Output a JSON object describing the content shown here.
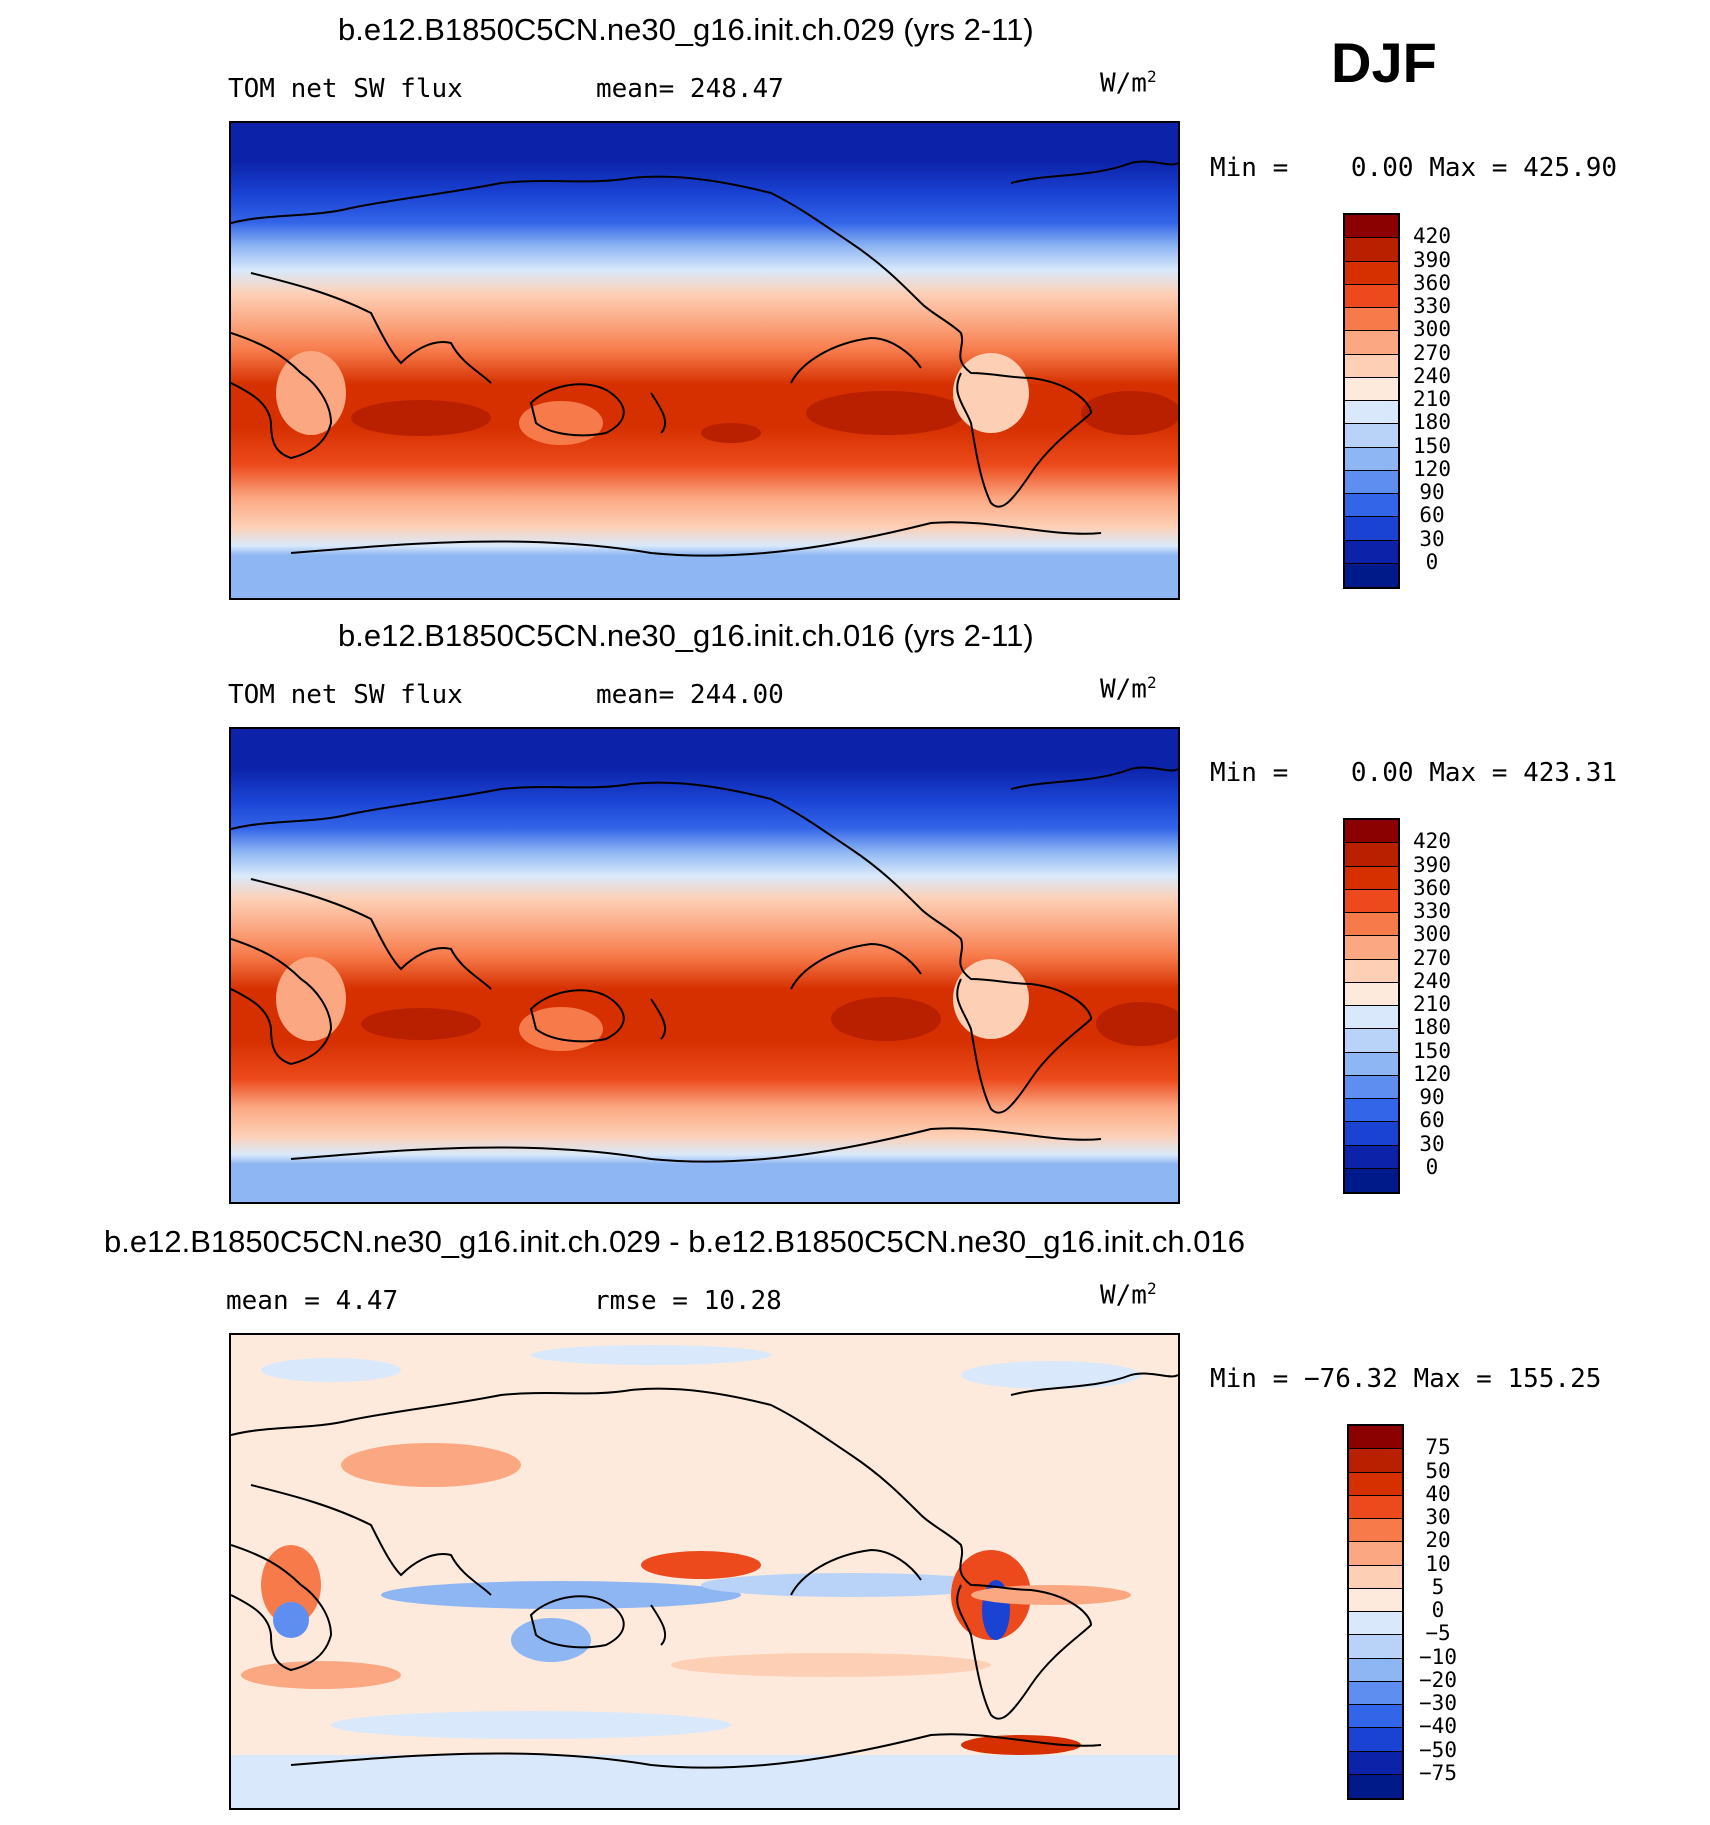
{
  "season_label": "DJF",
  "panels": [
    {
      "title": "b.e12.B1850C5CN.ne30_g16.init.ch.029 (yrs 2-11)",
      "left_label": "TOM net SW flux",
      "stat_label": "mean= 248.47",
      "units": "W/m",
      "units_sup": "2",
      "min_label": "Min =",
      "min_value": "0.00",
      "max_label": "Max =",
      "max_value": "425.90",
      "levels": [
        "420",
        "390",
        "360",
        "330",
        "300",
        "270",
        "240",
        "210",
        "180",
        "150",
        "120",
        "90",
        "60",
        "30",
        "0"
      ],
      "colors": [
        "#8b0000",
        "#b82000",
        "#d63000",
        "#ec4a1c",
        "#f77a4a",
        "#fba882",
        "#fdd0b6",
        "#fdeadc",
        "#d9e9fb",
        "#b8d3f7",
        "#8eb6f3",
        "#5e8ff0",
        "#3365e8",
        "#1a43d4",
        "#0c22a8",
        "#001a8a"
      ]
    },
    {
      "title": "b.e12.B1850C5CN.ne30_g16.init.ch.016 (yrs 2-11)",
      "left_label": "TOM net SW flux",
      "stat_label": "mean= 244.00",
      "units": "W/m",
      "units_sup": "2",
      "min_label": "Min =",
      "min_value": "0.00",
      "max_label": "Max =",
      "max_value": "423.31",
      "levels": [
        "420",
        "390",
        "360",
        "330",
        "300",
        "270",
        "240",
        "210",
        "180",
        "150",
        "120",
        "90",
        "60",
        "30",
        "0"
      ],
      "colors": [
        "#8b0000",
        "#b82000",
        "#d63000",
        "#ec4a1c",
        "#f77a4a",
        "#fba882",
        "#fdd0b6",
        "#fdeadc",
        "#d9e9fb",
        "#b8d3f7",
        "#8eb6f3",
        "#5e8ff0",
        "#3365e8",
        "#1a43d4",
        "#0c22a8",
        "#001a8a"
      ]
    },
    {
      "title": "b.e12.B1850C5CN.ne30_g16.init.ch.029 - b.e12.B1850C5CN.ne30_g16.init.ch.016",
      "left_label": "mean =    4.47",
      "stat_label": "rmse =   10.28",
      "units": "W/m",
      "units_sup": "2",
      "min_label": "Min =",
      "min_value": "−76.32",
      "max_label": "Max =",
      "max_value": "155.25",
      "levels": [
        "75",
        "50",
        "40",
        "30",
        "20",
        "10",
        "5",
        "0",
        "−5",
        "−10",
        "−20",
        "−30",
        "−40",
        "−50",
        "−75"
      ],
      "colors": [
        "#8b0000",
        "#b82000",
        "#d63000",
        "#ec4a1c",
        "#f77a4a",
        "#fba882",
        "#fdd0b6",
        "#fdeadc",
        "#d9e9fb",
        "#b8d3f7",
        "#8eb6f3",
        "#5e8ff0",
        "#3365e8",
        "#1a43d4",
        "#0c22a8",
        "#001a8a"
      ]
    }
  ]
}
